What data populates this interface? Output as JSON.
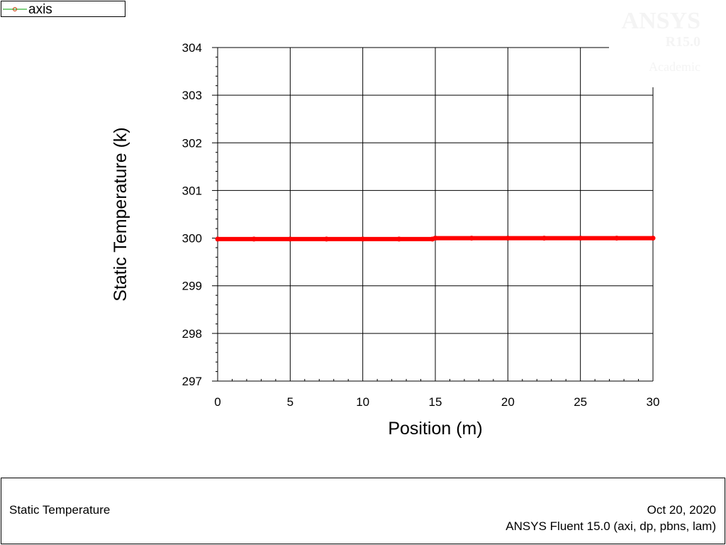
{
  "legend": {
    "label": "axis",
    "marker_color": "#cc3300",
    "line_color": "#00a000"
  },
  "watermark": {
    "brand": "ANSYS",
    "version": "R15.0",
    "edition": "Academic"
  },
  "chart_data": {
    "type": "line",
    "title": "",
    "xlabel": "Position (m)",
    "ylabel": "Static Temperature (k)",
    "xlim": [
      0,
      30
    ],
    "ylim": [
      297,
      304
    ],
    "x_ticks": [
      "0",
      "5",
      "10",
      "15",
      "20",
      "25",
      "30"
    ],
    "y_ticks": [
      "297",
      "298",
      "299",
      "300",
      "301",
      "302",
      "303",
      "304"
    ],
    "grid": true,
    "legend_position": "top-left",
    "series": [
      {
        "name": "axis",
        "color": "#ff0000",
        "x": [
          0,
          2.5,
          5,
          7.5,
          10,
          12.5,
          14.8,
          15,
          17.5,
          20,
          22.5,
          25,
          27.5,
          30
        ],
        "values": [
          299.98,
          299.98,
          299.98,
          299.98,
          299.98,
          299.98,
          299.98,
          300.0,
          300.0,
          300.0,
          300.0,
          300.0,
          300.0,
          300.0
        ]
      }
    ]
  },
  "footer": {
    "left": "Static Temperature",
    "date": "Oct 20, 2020",
    "solver": "ANSYS Fluent 15.0 (axi, dp, pbns, lam)"
  }
}
